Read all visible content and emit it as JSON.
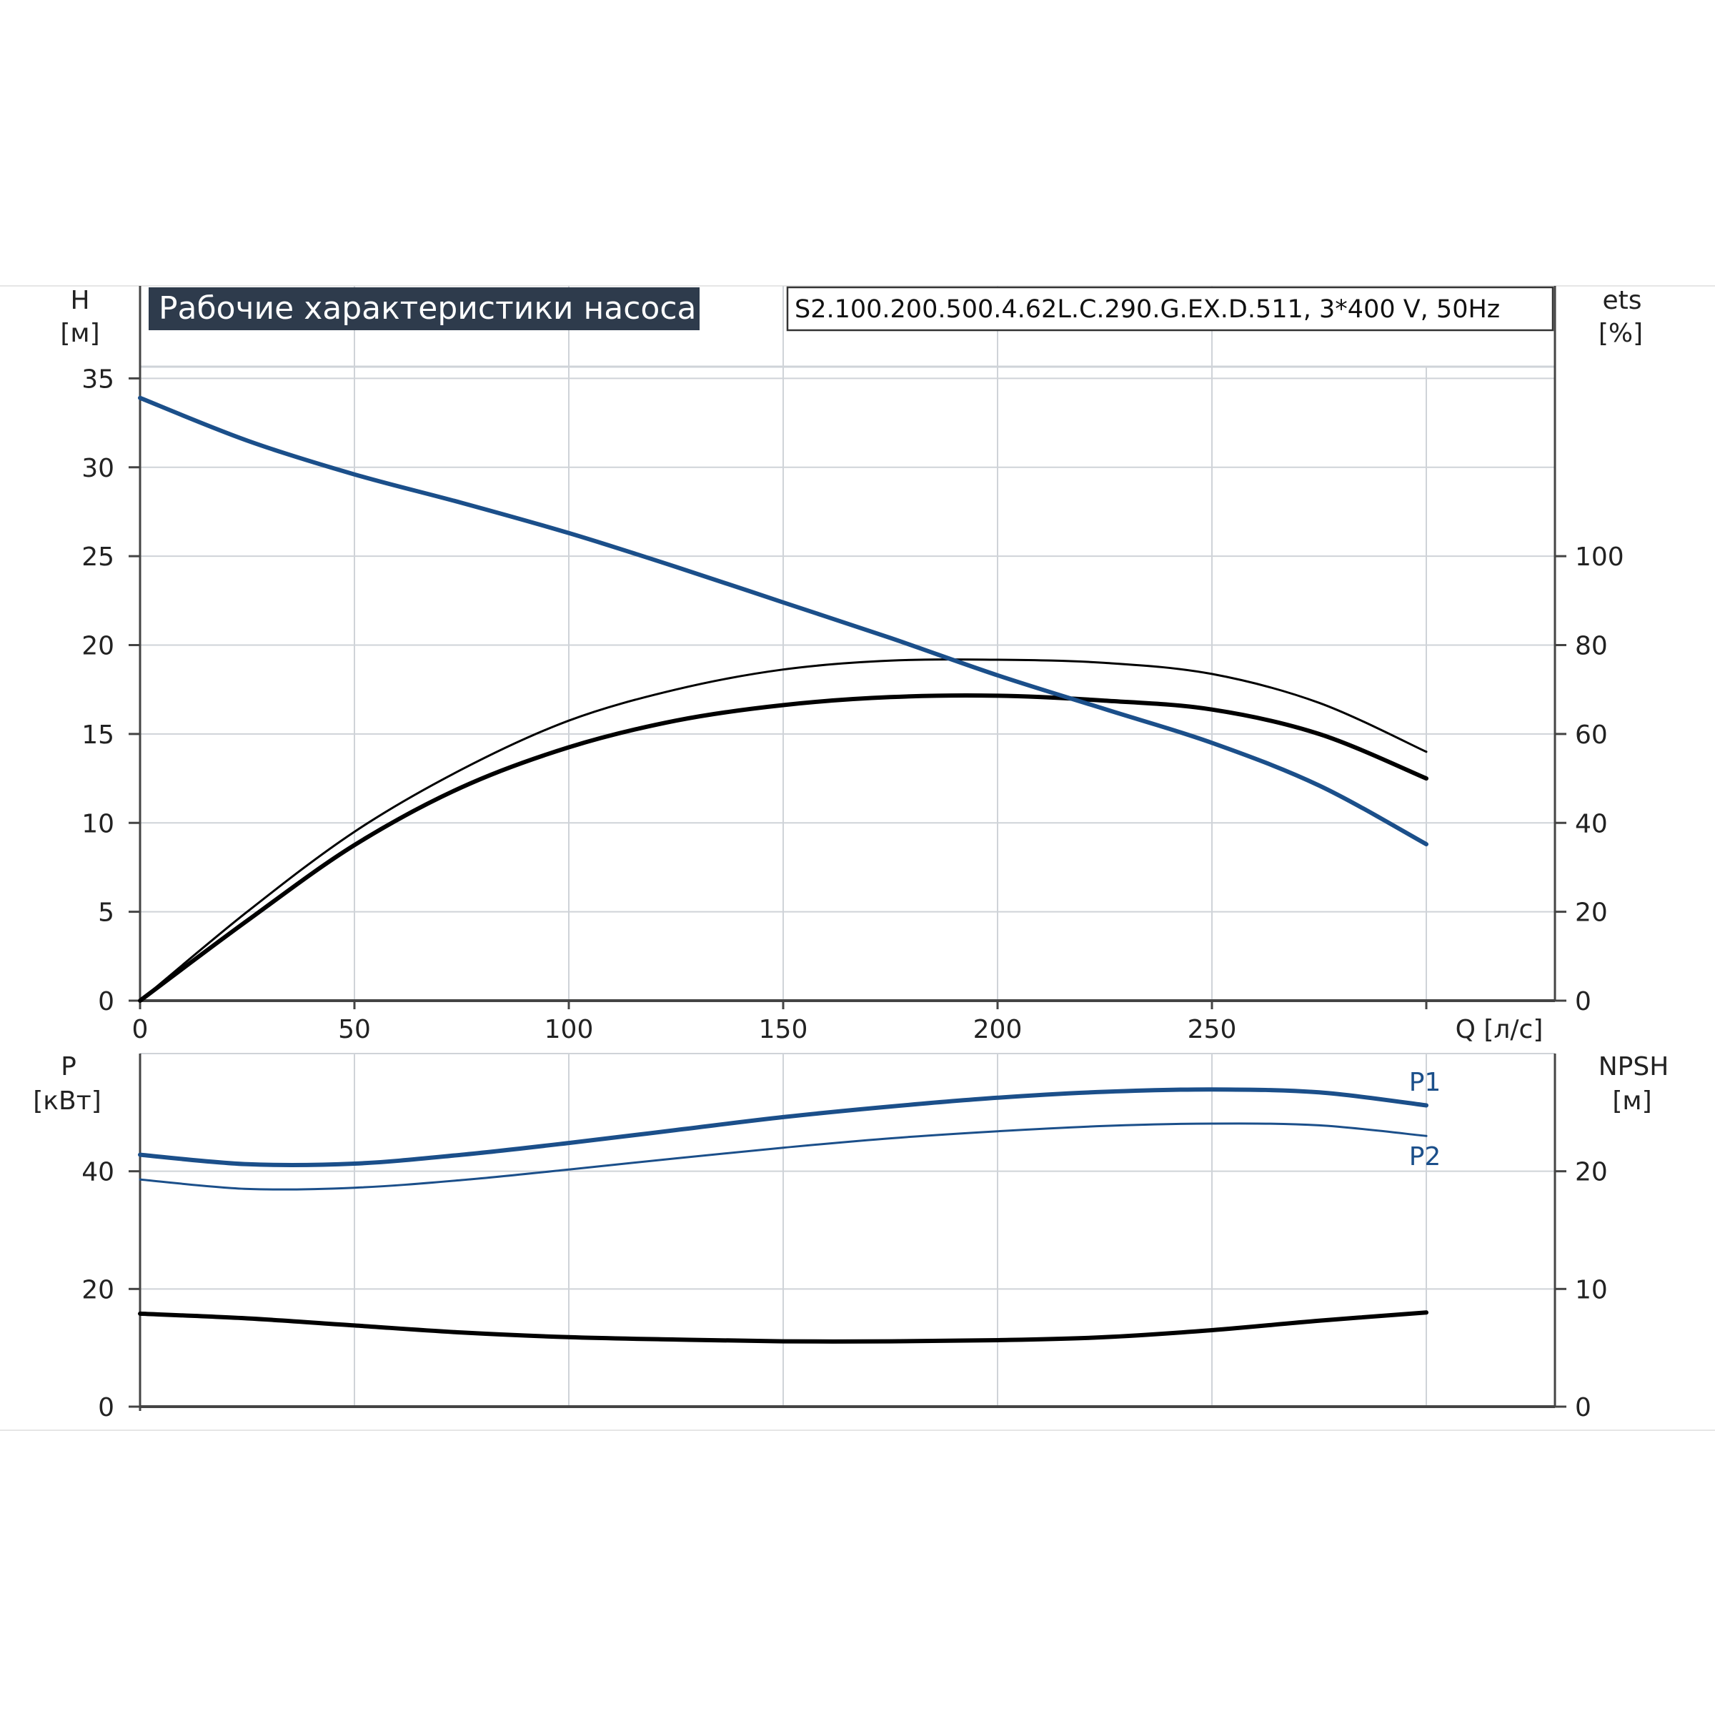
{
  "colors": {
    "curve_blue": "#1b4f8a",
    "curve_black": "#000000",
    "grid": "#cfd3d8",
    "axis": "#444444",
    "title_bg": "#2e3b4c",
    "title_fg": "#ffffff",
    "label_blue": "#1b4f8a"
  },
  "chart_data": [
    {
      "id": "top",
      "type": "line",
      "title": "Рабочие характеристики насоса",
      "model": "S2.100.200.500.4.62L.C.290.G.EX.D.511, 3*400 V, 50Hz",
      "xlabel": "Q [л/с]",
      "ylabel": [
        "H",
        "[м]"
      ],
      "y2label": [
        "ets",
        "[%]"
      ],
      "xlim": [
        0,
        330
      ],
      "ylim": [
        0,
        40
      ],
      "y2lim": [
        0,
        160
      ],
      "xticks": [
        0,
        50,
        100,
        150,
        200,
        250
      ],
      "yticks": [
        0,
        5,
        10,
        15,
        20,
        25,
        30,
        35
      ],
      "y2ticks": [
        0,
        20,
        40,
        60,
        80,
        100
      ],
      "grid": true,
      "series": [
        {
          "axis": "y",
          "color": "curve_blue",
          "width": 6,
          "x": [
            0,
            25,
            50,
            75,
            100,
            125,
            150,
            175,
            200,
            225,
            250,
            275,
            300
          ],
          "y": [
            33.9,
            31.5,
            29.6,
            28.0,
            26.3,
            24.4,
            22.4,
            20.4,
            18.3,
            16.4,
            14.5,
            12.1,
            8.8
          ]
        },
        {
          "axis": "y2",
          "color": "curve_black",
          "width": 3,
          "x": [
            0,
            25,
            50,
            75,
            100,
            125,
            150,
            175,
            200,
            225,
            250,
            275,
            300
          ],
          "y": [
            0,
            20,
            38,
            52,
            63,
            70,
            74.5,
            76.5,
            76.7,
            76,
            73.5,
            67,
            56
          ]
        },
        {
          "axis": "y2",
          "color": "curve_black",
          "width": 6,
          "x": [
            0,
            25,
            50,
            75,
            100,
            125,
            150,
            175,
            200,
            225,
            250,
            275,
            300
          ],
          "y": [
            0,
            18,
            35,
            48,
            57,
            63,
            66.5,
            68.3,
            68.6,
            67.5,
            65.5,
            60,
            50
          ]
        }
      ]
    },
    {
      "id": "bottom",
      "type": "line",
      "xlim": [
        0,
        330
      ],
      "ylabel": [
        "P",
        "[кВт]"
      ],
      "y2label": [
        "NPSH",
        "[м]"
      ],
      "ylim": [
        0,
        60
      ],
      "y2lim": [
        0,
        30
      ],
      "yticks": [
        0,
        20,
        40
      ],
      "y2ticks": [
        0,
        10,
        20
      ],
      "grid": true,
      "series": [
        {
          "name": "P1",
          "axis": "y",
          "color": "curve_blue",
          "width": 6,
          "x": [
            0,
            25,
            50,
            75,
            100,
            125,
            150,
            175,
            200,
            225,
            250,
            275,
            300
          ],
          "y": [
            42.8,
            41.2,
            41.3,
            42.8,
            44.8,
            47.0,
            49.2,
            51.0,
            52.5,
            53.5,
            53.9,
            53.4,
            51.2
          ]
        },
        {
          "name": "P2",
          "axis": "y",
          "color": "curve_blue",
          "width": 3,
          "x": [
            0,
            25,
            50,
            75,
            100,
            125,
            150,
            175,
            200,
            225,
            250,
            275,
            300
          ],
          "y": [
            38.6,
            37.0,
            37.2,
            38.5,
            40.3,
            42.2,
            44.0,
            45.6,
            46.8,
            47.7,
            48.1,
            47.8,
            46.0
          ]
        },
        {
          "axis": "y2",
          "color": "curve_black",
          "width": 6,
          "x": [
            0,
            25,
            50,
            75,
            100,
            125,
            150,
            175,
            200,
            225,
            250,
            275,
            300
          ],
          "y": [
            7.9,
            7.5,
            6.9,
            6.3,
            5.9,
            5.7,
            5.55,
            5.55,
            5.65,
            5.9,
            6.5,
            7.3,
            8.0
          ]
        }
      ]
    }
  ]
}
